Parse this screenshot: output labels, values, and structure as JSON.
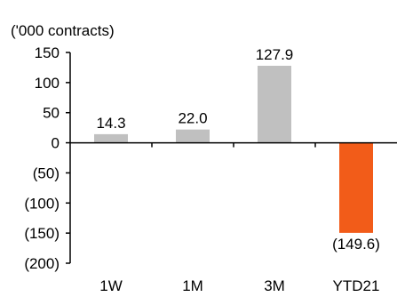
{
  "chart_data": {
    "type": "bar",
    "title": "",
    "unit_label": "('000 contracts)",
    "xlabel": "",
    "ylabel": "",
    "categories": [
      "1W",
      "1M",
      "3M",
      "YTD21"
    ],
    "values": [
      14.3,
      22.0,
      127.9,
      -149.6
    ],
    "data_labels": [
      "14.3",
      "22.0",
      "127.9",
      "(149.6)"
    ],
    "ylim": [
      -200,
      150
    ],
    "yticks": [
      150,
      100,
      50,
      0,
      -50,
      -100,
      -150,
      -200
    ],
    "ytick_labels": [
      "150",
      "100",
      "50",
      "0",
      "(50)",
      "(100)",
      "(150)",
      "(200)"
    ],
    "grid": false,
    "legend": "none",
    "colors": {
      "positive": "#c0c0c0",
      "negative": "#f25c19",
      "axis": "#000000"
    }
  }
}
